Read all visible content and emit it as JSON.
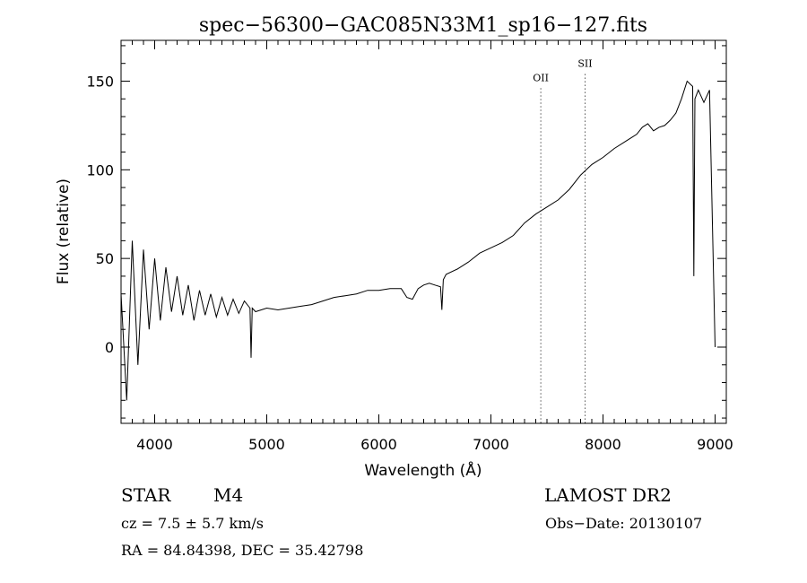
{
  "chart_data": {
    "type": "line",
    "title": "spec−56300−GAC085N33M1_sp16−127.fits",
    "xlabel": "Wavelength (Å)",
    "ylabel": "Flux (relative)",
    "xlim": [
      3700,
      9100
    ],
    "ylim": [
      -43,
      173
    ],
    "x_ticks": [
      4000,
      5000,
      6000,
      7000,
      8000,
      9000
    ],
    "y_ticks": [
      0,
      50,
      100,
      150
    ],
    "grid": false,
    "line_markers": [
      {
        "label": "OII",
        "x": 7445,
        "label_y": 150
      },
      {
        "label": "SII",
        "x": 7840,
        "label_y": 158
      }
    ],
    "series": [
      {
        "x": [
          3700,
          3750,
          3800,
          3850,
          3900,
          3950,
          4000,
          4050,
          4100,
          4150,
          4200,
          4250,
          4300,
          4350,
          4400,
          4450,
          4500,
          4550,
          4600,
          4650,
          4700,
          4750,
          4800,
          4850,
          4860,
          4870,
          4900,
          4950,
          5000,
          5100,
          5200,
          5300,
          5400,
          5500,
          5600,
          5700,
          5800,
          5900,
          6000,
          6100,
          6200,
          6250,
          6300,
          6350,
          6400,
          6450,
          6500,
          6550,
          6562,
          6575,
          6600,
          6700,
          6800,
          6900,
          7000,
          7100,
          7200,
          7300,
          7400,
          7500,
          7600,
          7700,
          7800,
          7900,
          8000,
          8100,
          8200,
          8250,
          8300,
          8350,
          8400,
          8450,
          8500,
          8550,
          8600,
          8650,
          8700,
          8750,
          8800,
          8810,
          8820,
          8850,
          8900,
          8950,
          9000
        ],
        "values": [
          30,
          -30,
          60,
          -10,
          55,
          10,
          50,
          15,
          45,
          20,
          40,
          18,
          35,
          15,
          32,
          18,
          30,
          17,
          28,
          18,
          27,
          19,
          26,
          22,
          -6,
          22,
          20,
          21,
          22,
          21,
          22,
          23,
          24,
          26,
          28,
          29,
          30,
          32,
          32,
          33,
          33,
          28,
          27,
          33,
          35,
          36,
          35,
          34,
          21,
          38,
          41,
          44,
          48,
          53,
          56,
          59,
          63,
          70,
          75,
          79,
          83,
          89,
          97,
          103,
          107,
          112,
          116,
          118,
          120,
          124,
          126,
          122,
          124,
          125,
          128,
          132,
          140,
          150,
          147,
          40,
          140,
          145,
          138,
          145,
          0
        ]
      }
    ]
  },
  "footer": {
    "object_class": "STAR",
    "subclass": "M4",
    "survey": "LAMOST DR2",
    "redshift": "cz = 7.5 ± 5.7 km/s",
    "obs_date": "Obs−Date: 20130107",
    "coords": "RA =  84.84398, DEC =  35.42798"
  }
}
